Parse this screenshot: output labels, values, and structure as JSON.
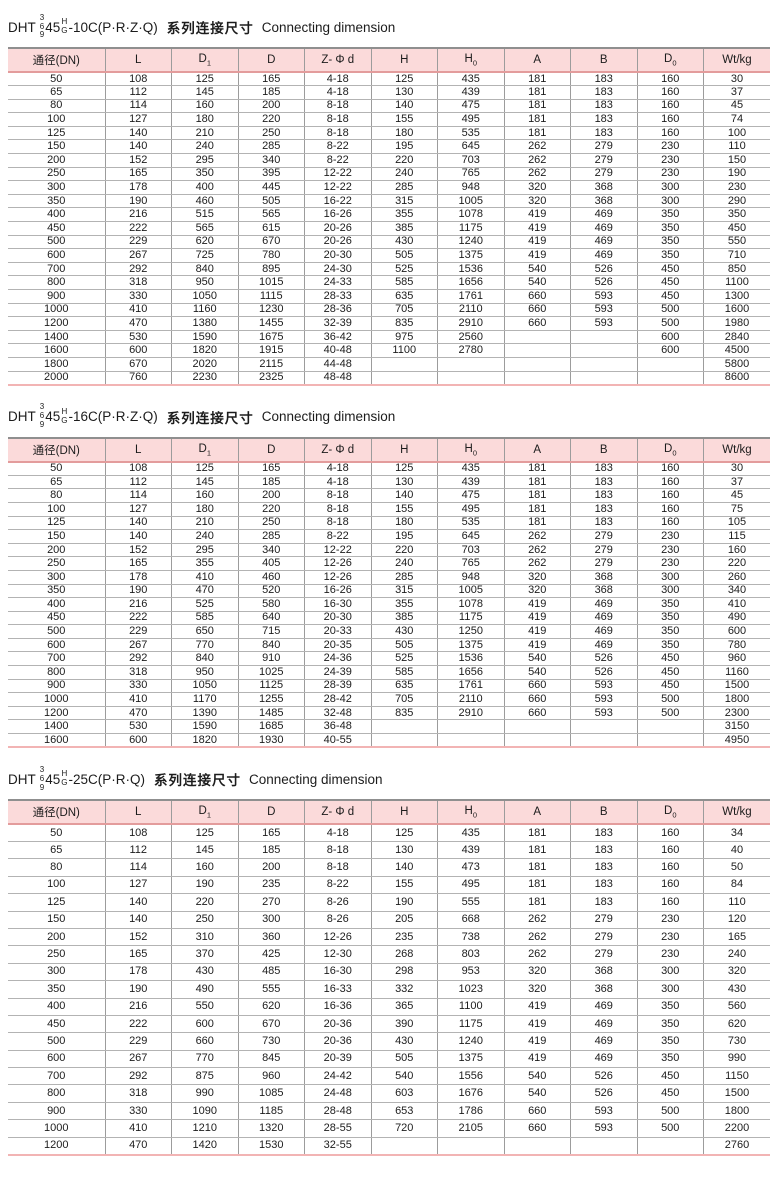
{
  "colors": {
    "header_bg": "#fbdada",
    "header_line": "#e39c9c",
    "table_bottom_line": "#f2b4b4",
    "grid_gray": "#9c9c9c",
    "text": "#1c1c1c"
  },
  "tables": [
    {
      "title": {
        "prefix": "DHT",
        "stack1": [
          "3",
          "6",
          "9"
        ],
        "mid": "45",
        "stack2": [
          "H",
          "G"
        ],
        "suffix": "-10C(P·R·Z·Q)",
        "cn": "系列连接尺寸",
        "en": "Connecting dimension"
      },
      "columns": [
        {
          "label": "通径(DN)",
          "sub": ""
        },
        {
          "label": "L",
          "sub": ""
        },
        {
          "label": "D",
          "sub": "1"
        },
        {
          "label": "D",
          "sub": ""
        },
        {
          "label": "Z- Φ d",
          "sub": ""
        },
        {
          "label": "H",
          "sub": ""
        },
        {
          "label": "H",
          "sub": "0"
        },
        {
          "label": "A",
          "sub": ""
        },
        {
          "label": "B",
          "sub": ""
        },
        {
          "label": "D",
          "sub": "0"
        },
        {
          "label": "Wt/kg",
          "sub": ""
        }
      ],
      "rows": [
        [
          "50",
          "108",
          "125",
          "165",
          "4-18",
          "125",
          "435",
          "181",
          "183",
          "160",
          "30"
        ],
        [
          "65",
          "112",
          "145",
          "185",
          "4-18",
          "130",
          "439",
          "181",
          "183",
          "160",
          "37"
        ],
        [
          "80",
          "114",
          "160",
          "200",
          "8-18",
          "140",
          "475",
          "181",
          "183",
          "160",
          "45"
        ],
        [
          "100",
          "127",
          "180",
          "220",
          "8-18",
          "155",
          "495",
          "181",
          "183",
          "160",
          "74"
        ],
        [
          "125",
          "140",
          "210",
          "250",
          "8-18",
          "180",
          "535",
          "181",
          "183",
          "160",
          "100"
        ],
        [
          "150",
          "140",
          "240",
          "285",
          "8-22",
          "195",
          "645",
          "262",
          "279",
          "230",
          "110"
        ],
        [
          "200",
          "152",
          "295",
          "340",
          "8-22",
          "220",
          "703",
          "262",
          "279",
          "230",
          "150"
        ],
        [
          "250",
          "165",
          "350",
          "395",
          "12-22",
          "240",
          "765",
          "262",
          "279",
          "230",
          "190"
        ],
        [
          "300",
          "178",
          "400",
          "445",
          "12-22",
          "285",
          "948",
          "320",
          "368",
          "300",
          "230"
        ],
        [
          "350",
          "190",
          "460",
          "505",
          "16-22",
          "315",
          "1005",
          "320",
          "368",
          "300",
          "290"
        ],
        [
          "400",
          "216",
          "515",
          "565",
          "16-26",
          "355",
          "1078",
          "419",
          "469",
          "350",
          "350"
        ],
        [
          "450",
          "222",
          "565",
          "615",
          "20-26",
          "385",
          "1175",
          "419",
          "469",
          "350",
          "450"
        ],
        [
          "500",
          "229",
          "620",
          "670",
          "20-26",
          "430",
          "1240",
          "419",
          "469",
          "350",
          "550"
        ],
        [
          "600",
          "267",
          "725",
          "780",
          "20-30",
          "505",
          "1375",
          "419",
          "469",
          "350",
          "710"
        ],
        [
          "700",
          "292",
          "840",
          "895",
          "24-30",
          "525",
          "1536",
          "540",
          "526",
          "450",
          "850"
        ],
        [
          "800",
          "318",
          "950",
          "1015",
          "24-33",
          "585",
          "1656",
          "540",
          "526",
          "450",
          "1100"
        ],
        [
          "900",
          "330",
          "1050",
          "1115",
          "28-33",
          "635",
          "1761",
          "660",
          "593",
          "450",
          "1300"
        ],
        [
          "1000",
          "410",
          "1160",
          "1230",
          "28-36",
          "705",
          "2110",
          "660",
          "593",
          "500",
          "1600"
        ],
        [
          "1200",
          "470",
          "1380",
          "1455",
          "32-39",
          "835",
          "2910",
          "660",
          "593",
          "500",
          "1980"
        ],
        [
          "1400",
          "530",
          "1590",
          "1675",
          "36-42",
          "975",
          "2560",
          "",
          "",
          "600",
          "2840"
        ],
        [
          "1600",
          "600",
          "1820",
          "1915",
          "40-48",
          "1100",
          "2780",
          "",
          "",
          "600",
          "4500"
        ],
        [
          "1800",
          "670",
          "2020",
          "2115",
          "44-48",
          "",
          "",
          "",
          "",
          "",
          "5800"
        ],
        [
          "2000",
          "760",
          "2230",
          "2325",
          "48-48",
          "",
          "",
          "",
          "",
          "",
          "8600"
        ]
      ]
    },
    {
      "title": {
        "prefix": "DHT",
        "stack1": [
          "3",
          "6",
          "9"
        ],
        "mid": "45",
        "stack2": [
          "H",
          "G"
        ],
        "suffix": "-16C(P·R·Z·Q)",
        "cn": "系列连接尺寸",
        "en": "Connecting dimension"
      },
      "columns": [
        {
          "label": "通径(DN)",
          "sub": ""
        },
        {
          "label": "L",
          "sub": ""
        },
        {
          "label": "D",
          "sub": "1"
        },
        {
          "label": "D",
          "sub": ""
        },
        {
          "label": "Z- Φ d",
          "sub": ""
        },
        {
          "label": "H",
          "sub": ""
        },
        {
          "label": "H",
          "sub": "0"
        },
        {
          "label": "A",
          "sub": ""
        },
        {
          "label": "B",
          "sub": ""
        },
        {
          "label": "D",
          "sub": "0"
        },
        {
          "label": "Wt/kg",
          "sub": ""
        }
      ],
      "rows": [
        [
          "50",
          "108",
          "125",
          "165",
          "4-18",
          "125",
          "435",
          "181",
          "183",
          "160",
          "30"
        ],
        [
          "65",
          "112",
          "145",
          "185",
          "4-18",
          "130",
          "439",
          "181",
          "183",
          "160",
          "37"
        ],
        [
          "80",
          "114",
          "160",
          "200",
          "8-18",
          "140",
          "475",
          "181",
          "183",
          "160",
          "45"
        ],
        [
          "100",
          "127",
          "180",
          "220",
          "8-18",
          "155",
          "495",
          "181",
          "183",
          "160",
          "75"
        ],
        [
          "125",
          "140",
          "210",
          "250",
          "8-18",
          "180",
          "535",
          "181",
          "183",
          "160",
          "105"
        ],
        [
          "150",
          "140",
          "240",
          "285",
          "8-22",
          "195",
          "645",
          "262",
          "279",
          "230",
          "115"
        ],
        [
          "200",
          "152",
          "295",
          "340",
          "12-22",
          "220",
          "703",
          "262",
          "279",
          "230",
          "160"
        ],
        [
          "250",
          "165",
          "355",
          "405",
          "12-26",
          "240",
          "765",
          "262",
          "279",
          "230",
          "220"
        ],
        [
          "300",
          "178",
          "410",
          "460",
          "12-26",
          "285",
          "948",
          "320",
          "368",
          "300",
          "260"
        ],
        [
          "350",
          "190",
          "470",
          "520",
          "16-26",
          "315",
          "1005",
          "320",
          "368",
          "300",
          "340"
        ],
        [
          "400",
          "216",
          "525",
          "580",
          "16-30",
          "355",
          "1078",
          "419",
          "469",
          "350",
          "410"
        ],
        [
          "450",
          "222",
          "585",
          "640",
          "20-30",
          "385",
          "1175",
          "419",
          "469",
          "350",
          "490"
        ],
        [
          "500",
          "229",
          "650",
          "715",
          "20-33",
          "430",
          "1250",
          "419",
          "469",
          "350",
          "600"
        ],
        [
          "600",
          "267",
          "770",
          "840",
          "20-35",
          "505",
          "1375",
          "419",
          "469",
          "350",
          "780"
        ],
        [
          "700",
          "292",
          "840",
          "910",
          "24-36",
          "525",
          "1536",
          "540",
          "526",
          "450",
          "960"
        ],
        [
          "800",
          "318",
          "950",
          "1025",
          "24-39",
          "585",
          "1656",
          "540",
          "526",
          "450",
          "1160"
        ],
        [
          "900",
          "330",
          "1050",
          "1125",
          "28-39",
          "635",
          "1761",
          "660",
          "593",
          "450",
          "1500"
        ],
        [
          "1000",
          "410",
          "1170",
          "1255",
          "28-42",
          "705",
          "2110",
          "660",
          "593",
          "500",
          "1800"
        ],
        [
          "1200",
          "470",
          "1390",
          "1485",
          "32-48",
          "835",
          "2910",
          "660",
          "593",
          "500",
          "2300"
        ],
        [
          "1400",
          "530",
          "1590",
          "1685",
          "36-48",
          "",
          "",
          "",
          "",
          "",
          "3150"
        ],
        [
          "1600",
          "600",
          "1820",
          "1930",
          "40-55",
          "",
          "",
          "",
          "",
          "",
          "4950"
        ]
      ]
    },
    {
      "title": {
        "prefix": "DHT",
        "stack1": [
          "3",
          "6",
          "9"
        ],
        "mid": "45",
        "stack2": [
          "H",
          "G"
        ],
        "suffix": "-25C(P·R·Q)",
        "cn": "系列连接尺寸",
        "en": "Connecting dimension"
      },
      "columns": [
        {
          "label": "通径(DN)",
          "sub": ""
        },
        {
          "label": "L",
          "sub": ""
        },
        {
          "label": "D",
          "sub": "1"
        },
        {
          "label": "D",
          "sub": ""
        },
        {
          "label": "Z- Φ d",
          "sub": ""
        },
        {
          "label": "H",
          "sub": ""
        },
        {
          "label": "H",
          "sub": "0"
        },
        {
          "label": "A",
          "sub": ""
        },
        {
          "label": "B",
          "sub": ""
        },
        {
          "label": "D",
          "sub": "0"
        },
        {
          "label": "Wt/kg",
          "sub": ""
        }
      ],
      "rows": [
        [
          "50",
          "108",
          "125",
          "165",
          "4-18",
          "125",
          "435",
          "181",
          "183",
          "160",
          "34"
        ],
        [
          "65",
          "112",
          "145",
          "185",
          "8-18",
          "130",
          "439",
          "181",
          "183",
          "160",
          "40"
        ],
        [
          "80",
          "114",
          "160",
          "200",
          "8-18",
          "140",
          "473",
          "181",
          "183",
          "160",
          "50"
        ],
        [
          "100",
          "127",
          "190",
          "235",
          "8-22",
          "155",
          "495",
          "181",
          "183",
          "160",
          "84"
        ],
        [
          "125",
          "140",
          "220",
          "270",
          "8-26",
          "190",
          "555",
          "181",
          "183",
          "160",
          "110"
        ],
        [
          "150",
          "140",
          "250",
          "300",
          "8-26",
          "205",
          "668",
          "262",
          "279",
          "230",
          "120"
        ],
        [
          "200",
          "152",
          "310",
          "360",
          "12-26",
          "235",
          "738",
          "262",
          "279",
          "230",
          "165"
        ],
        [
          "250",
          "165",
          "370",
          "425",
          "12-30",
          "268",
          "803",
          "262",
          "279",
          "230",
          "240"
        ],
        [
          "300",
          "178",
          "430",
          "485",
          "16-30",
          "298",
          "953",
          "320",
          "368",
          "300",
          "320"
        ],
        [
          "350",
          "190",
          "490",
          "555",
          "16-33",
          "332",
          "1023",
          "320",
          "368",
          "300",
          "430"
        ],
        [
          "400",
          "216",
          "550",
          "620",
          "16-36",
          "365",
          "1100",
          "419",
          "469",
          "350",
          "560"
        ],
        [
          "450",
          "222",
          "600",
          "670",
          "20-36",
          "390",
          "1175",
          "419",
          "469",
          "350",
          "620"
        ],
        [
          "500",
          "229",
          "660",
          "730",
          "20-36",
          "430",
          "1240",
          "419",
          "469",
          "350",
          "730"
        ],
        [
          "600",
          "267",
          "770",
          "845",
          "20-39",
          "505",
          "1375",
          "419",
          "469",
          "350",
          "990"
        ],
        [
          "700",
          "292",
          "875",
          "960",
          "24-42",
          "540",
          "1556",
          "540",
          "526",
          "450",
          "1150"
        ],
        [
          "800",
          "318",
          "990",
          "1085",
          "24-48",
          "603",
          "1676",
          "540",
          "526",
          "450",
          "1500"
        ],
        [
          "900",
          "330",
          "1090",
          "1185",
          "28-48",
          "653",
          "1786",
          "660",
          "593",
          "500",
          "1800"
        ],
        [
          "1000",
          "410",
          "1210",
          "1320",
          "28-55",
          "720",
          "2105",
          "660",
          "593",
          "500",
          "2200"
        ],
        [
          "1200",
          "470",
          "1420",
          "1530",
          "32-55",
          "",
          "",
          "",
          "",
          "",
          "2760"
        ]
      ]
    }
  ]
}
